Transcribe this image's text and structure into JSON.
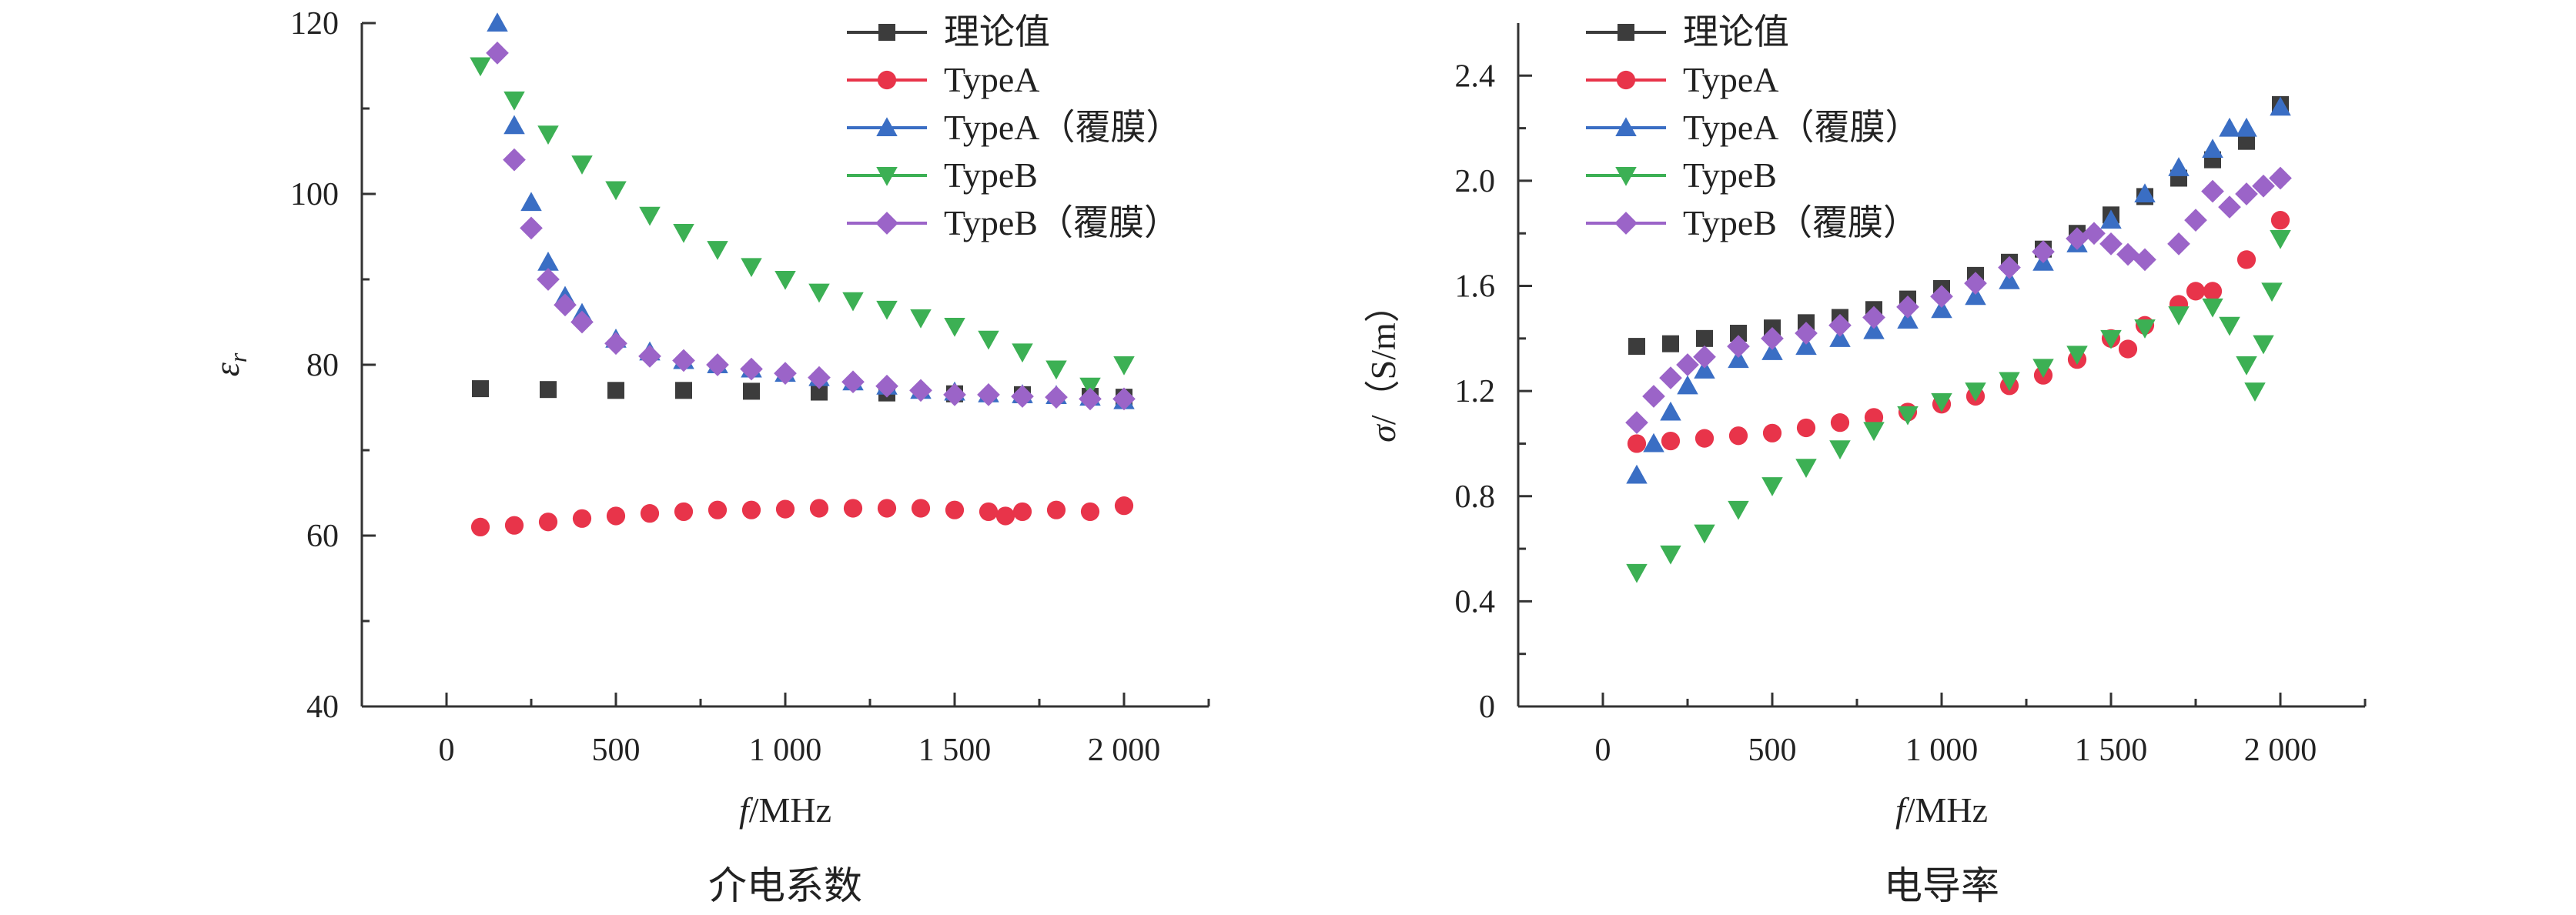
{
  "chart_data": [
    {
      "type": "scatter",
      "panel_label": "介电系数",
      "xlabel_italic": "f",
      "xlabel_rest": "/MHz",
      "ylabel_symbol": "ε",
      "ylabel_sub": "r",
      "xlim": [
        -250,
        2250
      ],
      "ylim": [
        40,
        120
      ],
      "xticks": [
        0,
        500,
        1000,
        1500,
        2000
      ],
      "xtick_labels": [
        "0",
        "500",
        "1 000",
        "1 500",
        "2 000"
      ],
      "yticks": [
        40,
        60,
        80,
        100,
        120
      ],
      "ytick_labels": [
        "40",
        "60",
        "80",
        "100",
        "120"
      ],
      "legend": "top-right",
      "series": [
        {
          "name": "理论值",
          "marker": "square",
          "color": "#3c3c3c",
          "x": [
            100,
            300,
            500,
            700,
            900,
            1100,
            1300,
            1500,
            1700,
            1900,
            2000
          ],
          "y": [
            77.2,
            77.1,
            77.0,
            77.0,
            76.9,
            76.8,
            76.7,
            76.6,
            76.5,
            76.3,
            76.2
          ]
        },
        {
          "name": "TypeA",
          "marker": "circle",
          "color": "#e8344a",
          "x": [
            100,
            200,
            300,
            400,
            500,
            600,
            700,
            800,
            900,
            1000,
            1100,
            1200,
            1300,
            1400,
            1500,
            1600,
            1650,
            1700,
            1800,
            1900,
            2000
          ],
          "y": [
            61.0,
            61.2,
            61.6,
            62.0,
            62.3,
            62.6,
            62.8,
            63.0,
            63.0,
            63.1,
            63.2,
            63.2,
            63.2,
            63.2,
            63.0,
            62.8,
            62.3,
            62.8,
            63.0,
            62.8,
            63.5
          ]
        },
        {
          "name": "TypeA（覆膜）",
          "marker": "triangle-up",
          "color": "#3a6ec4",
          "x": [
            150,
            200,
            250,
            300,
            350,
            400,
            500,
            600,
            700,
            800,
            900,
            1000,
            1100,
            1200,
            1300,
            1400,
            1500,
            1600,
            1700,
            1800,
            1900,
            2000
          ],
          "y": [
            120.0,
            108.0,
            99.0,
            92.0,
            88.0,
            86.0,
            83.0,
            81.5,
            80.5,
            80.0,
            79.5,
            79.0,
            78.5,
            78.0,
            77.5,
            77.0,
            76.8,
            76.6,
            76.5,
            76.4,
            76.2,
            75.8
          ]
        },
        {
          "name": "TypeB",
          "marker": "triangle-down",
          "color": "#3cb054",
          "x": [
            100,
            200,
            300,
            400,
            500,
            600,
            700,
            800,
            900,
            1000,
            1100,
            1200,
            1300,
            1400,
            1500,
            1600,
            1700,
            1800,
            1900,
            2000
          ],
          "y": [
            115.0,
            111.0,
            107.0,
            103.5,
            100.5,
            97.5,
            95.5,
            93.5,
            91.5,
            90.0,
            88.5,
            87.5,
            86.5,
            85.5,
            84.5,
            83.0,
            81.5,
            79.5,
            77.5,
            80.0
          ]
        },
        {
          "name": "TypeB（覆膜）",
          "marker": "diamond",
          "color": "#9b64c8",
          "x": [
            150,
            200,
            250,
            300,
            350,
            400,
            500,
            600,
            700,
            800,
            900,
            1000,
            1100,
            1200,
            1300,
            1400,
            1500,
            1600,
            1700,
            1800,
            1900,
            2000
          ],
          "y": [
            116.5,
            104.0,
            96.0,
            90.0,
            87.0,
            85.0,
            82.5,
            81.0,
            80.5,
            80.0,
            79.5,
            79.0,
            78.5,
            78.0,
            77.5,
            77.0,
            76.5,
            76.5,
            76.3,
            76.2,
            76.0,
            76.0
          ]
        }
      ]
    },
    {
      "type": "scatter",
      "panel_label": "电导率",
      "xlabel_italic": "f",
      "xlabel_rest": "/MHz",
      "ylabel_symbol": "σ",
      "ylabel_rest": "/（S/m）",
      "xlim": [
        -250,
        2250
      ],
      "ylim": [
        0,
        2.6
      ],
      "xticks": [
        0,
        500,
        1000,
        1500,
        2000
      ],
      "xtick_labels": [
        "0",
        "500",
        "1 000",
        "1 500",
        "2 000"
      ],
      "yticks": [
        0,
        0.4,
        0.8,
        1.2,
        1.6,
        2.0,
        2.4
      ],
      "ytick_labels": [
        "0",
        "0.4",
        "0.8",
        "1.2",
        "1.6",
        "2.0",
        "2.4"
      ],
      "legend": "top-right",
      "series": [
        {
          "name": "理论值",
          "marker": "square",
          "color": "#3c3c3c",
          "x": [
            100,
            200,
            300,
            400,
            500,
            600,
            700,
            800,
            900,
            1000,
            1100,
            1200,
            1300,
            1400,
            1500,
            1600,
            1700,
            1800,
            1900,
            2000
          ],
          "y": [
            1.37,
            1.38,
            1.4,
            1.42,
            1.44,
            1.46,
            1.48,
            1.51,
            1.55,
            1.59,
            1.64,
            1.69,
            1.74,
            1.8,
            1.87,
            1.94,
            2.01,
            2.08,
            2.15,
            2.29
          ]
        },
        {
          "name": "TypeA",
          "marker": "circle",
          "color": "#e8344a",
          "x": [
            100,
            200,
            300,
            400,
            500,
            600,
            700,
            800,
            900,
            1000,
            1100,
            1200,
            1300,
            1400,
            1500,
            1550,
            1600,
            1700,
            1750,
            1800,
            1900,
            2000
          ],
          "y": [
            1.0,
            1.01,
            1.02,
            1.03,
            1.04,
            1.06,
            1.08,
            1.1,
            1.12,
            1.15,
            1.18,
            1.22,
            1.26,
            1.32,
            1.4,
            1.36,
            1.45,
            1.53,
            1.58,
            1.58,
            1.7,
            1.85
          ]
        },
        {
          "name": "TypeA（覆膜）",
          "marker": "triangle-up",
          "color": "#3a6ec4",
          "x": [
            100,
            150,
            200,
            250,
            300,
            400,
            500,
            600,
            700,
            800,
            900,
            1000,
            1100,
            1200,
            1300,
            1400,
            1500,
            1600,
            1700,
            1800,
            1850,
            1900,
            2000
          ],
          "y": [
            0.88,
            1.0,
            1.12,
            1.22,
            1.28,
            1.32,
            1.35,
            1.37,
            1.4,
            1.43,
            1.47,
            1.51,
            1.56,
            1.62,
            1.69,
            1.76,
            1.85,
            1.95,
            2.05,
            2.12,
            2.2,
            2.2,
            2.28
          ]
        },
        {
          "name": "TypeB",
          "marker": "triangle-down",
          "color": "#3cb054",
          "x": [
            100,
            200,
            300,
            400,
            500,
            600,
            700,
            800,
            900,
            1000,
            1100,
            1200,
            1300,
            1400,
            1500,
            1600,
            1700,
            1800,
            1850,
            1900,
            1925,
            1950,
            1975,
            2000
          ],
          "y": [
            0.51,
            0.58,
            0.66,
            0.75,
            0.84,
            0.91,
            0.98,
            1.05,
            1.11,
            1.16,
            1.2,
            1.24,
            1.29,
            1.34,
            1.4,
            1.44,
            1.49,
            1.52,
            1.45,
            1.3,
            1.2,
            1.38,
            1.58,
            1.78
          ]
        },
        {
          "name": "TypeB（覆膜）",
          "marker": "diamond",
          "color": "#9b64c8",
          "x": [
            100,
            150,
            200,
            250,
            300,
            400,
            500,
            600,
            700,
            800,
            900,
            1000,
            1100,
            1200,
            1300,
            1400,
            1450,
            1500,
            1550,
            1600,
            1700,
            1750,
            1800,
            1850,
            1900,
            1950,
            2000
          ],
          "y": [
            1.08,
            1.18,
            1.25,
            1.3,
            1.33,
            1.37,
            1.4,
            1.42,
            1.45,
            1.48,
            1.52,
            1.56,
            1.61,
            1.67,
            1.73,
            1.78,
            1.8,
            1.76,
            1.72,
            1.7,
            1.76,
            1.85,
            1.96,
            1.9,
            1.95,
            1.98,
            2.01
          ]
        }
      ]
    }
  ]
}
